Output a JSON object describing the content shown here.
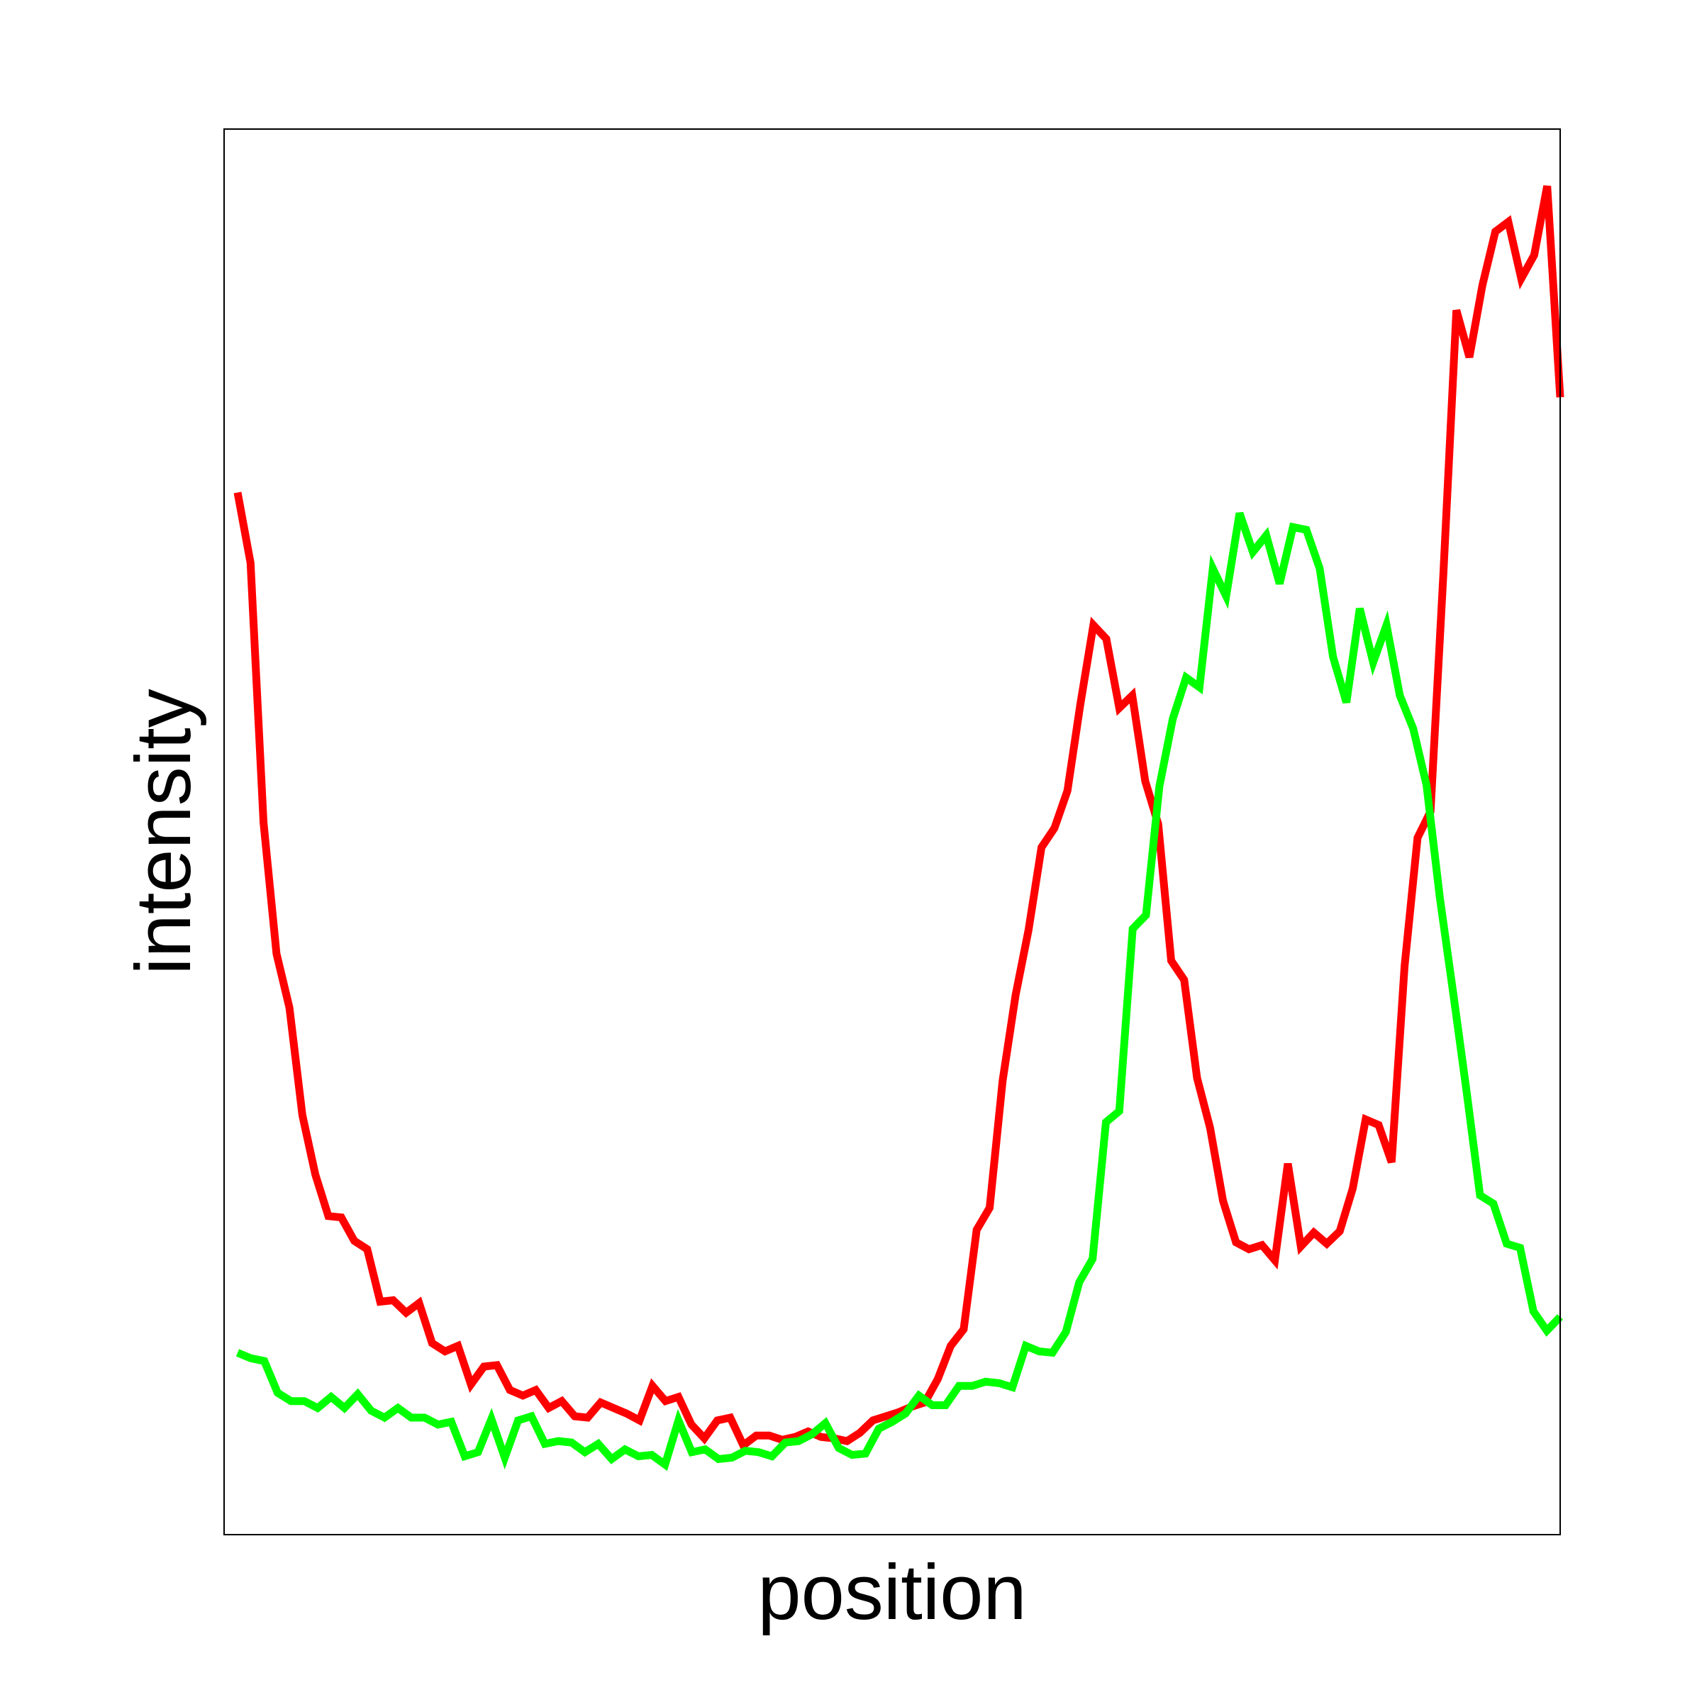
{
  "chart_data": {
    "type": "line",
    "title": "",
    "xlabel": "position",
    "ylabel": "intensity",
    "x_ticks_shown": false,
    "y_ticks_shown": false,
    "grid": false,
    "legend": "none",
    "xlim": [
      0,
      100
    ],
    "ylim": [
      0,
      100
    ],
    "series": [
      {
        "color": "#ff0000",
        "values": [
          74.6,
          69.5,
          50.7,
          41.2,
          37.3,
          29.5,
          25.2,
          22.2,
          22.1,
          20.4,
          19.8,
          16.0,
          16.1,
          15.2,
          15.9,
          13.0,
          12.4,
          12.8,
          10.0,
          11.3,
          11.4,
          9.6,
          9.2,
          9.6,
          8.3,
          8.8,
          7.7,
          7.6,
          8.7,
          8.3,
          7.9,
          7.4,
          9.9,
          8.8,
          9.1,
          7.1,
          6.1,
          7.4,
          7.6,
          5.6,
          6.3,
          6.3,
          6.0,
          6.2,
          6.6,
          6.2,
          6.1,
          5.9,
          6.5,
          7.4,
          7.7,
          8.0,
          8.4,
          8.7,
          10.4,
          12.8,
          14.0,
          21.2,
          22.8,
          32.0,
          38.2,
          42.9,
          48.9,
          50.3,
          53.0,
          59.3,
          65.0,
          64.0,
          59.0,
          59.9,
          53.7,
          50.6,
          40.7,
          39.3,
          32.2,
          28.6,
          23.3,
          20.3,
          19.8,
          20.1,
          19.0,
          26.0,
          20.0,
          21.0,
          20.2,
          21.1,
          24.2,
          29.2,
          28.8,
          26.1,
          40.3,
          49.6,
          51.5,
          68.8,
          87.8,
          84.4,
          89.6,
          93.5,
          94.2,
          90.1,
          91.8,
          96.8,
          81.5
        ]
      },
      {
        "color": "#00ff00",
        "values": [
          12.3,
          11.9,
          11.7,
          9.4,
          8.8,
          8.8,
          8.3,
          9.1,
          8.3,
          9.3,
          8.1,
          7.6,
          8.3,
          7.6,
          7.6,
          7.1,
          7.3,
          4.8,
          5.1,
          7.5,
          4.7,
          7.4,
          7.7,
          5.7,
          5.9,
          5.8,
          5.1,
          5.7,
          4.6,
          5.3,
          4.8,
          4.9,
          4.2,
          7.4,
          5.1,
          5.3,
          4.6,
          4.7,
          5.2,
          5.1,
          4.8,
          5.8,
          5.9,
          6.4,
          7.2,
          5.4,
          4.9,
          5.0,
          6.8,
          7.3,
          7.9,
          9.2,
          8.5,
          8.5,
          9.9,
          9.9,
          10.2,
          10.1,
          9.8,
          12.8,
          12.4,
          12.3,
          13.8,
          17.4,
          19.1,
          29.0,
          29.8,
          43.0,
          44.0,
          53.3,
          58.2,
          61.2,
          60.5,
          69.1,
          67.1,
          73.1,
          70.3,
          71.5,
          68.0,
          72.1,
          71.9,
          69.1,
          62.7,
          59.4,
          66.2,
          62.3,
          65.0,
          59.9,
          57.5,
          53.4,
          45.2,
          38.3,
          31.2,
          23.7,
          23.1,
          20.2,
          19.9,
          15.3,
          13.9,
          14.9
        ]
      }
    ]
  }
}
